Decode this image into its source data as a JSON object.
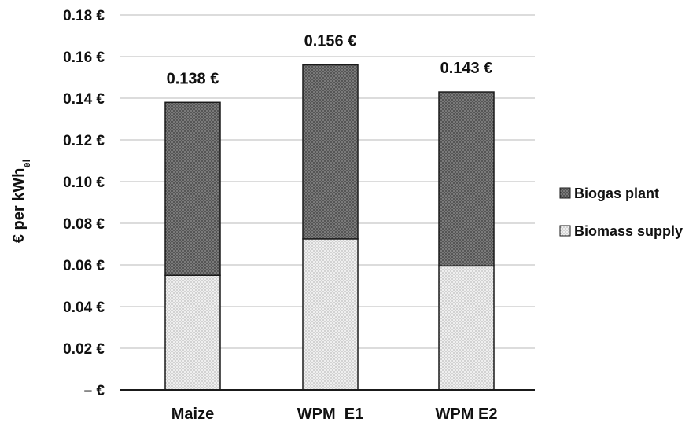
{
  "chart_data": {
    "type": "bar",
    "stacked": true,
    "categories": [
      "Maize",
      "WPM  E1",
      "WPM E2"
    ],
    "series": [
      {
        "name": "Biomass supply",
        "values": [
          0.055,
          0.0725,
          0.0595
        ],
        "pattern": "light-dotted"
      },
      {
        "name": "Biogas plant",
        "values": [
          0.083,
          0.0835,
          0.0835
        ],
        "pattern": "dark-dotted"
      }
    ],
    "totals": [
      "0.138 €",
      "0.156 €",
      "0.143 €"
    ],
    "ylabel_main": "€ per kWh",
    "ylabel_sub": "el",
    "yticks": [
      {
        "value": 0,
        "label": "–   €"
      },
      {
        "value": 0.02,
        "label": "0.02 €"
      },
      {
        "value": 0.04,
        "label": "0.04 €"
      },
      {
        "value": 0.06,
        "label": "0.06 €"
      },
      {
        "value": 0.08,
        "label": "0.08 €"
      },
      {
        "value": 0.1,
        "label": "0.10 €"
      },
      {
        "value": 0.12,
        "label": "0.12 €"
      },
      {
        "value": 0.14,
        "label": "0.14 €"
      },
      {
        "value": 0.16,
        "label": "0.16 €"
      },
      {
        "value": 0.18,
        "label": "0.18 €"
      }
    ],
    "ylim": [
      0,
      0.18
    ],
    "grid": true,
    "legend_position": "right",
    "legend_order": [
      "Biogas plant",
      "Biomass supply"
    ],
    "colors": {
      "dark_fill": "#7a7a7a",
      "dark_dot": "#3a3a3a",
      "light_fill": "#efefef",
      "light_dot": "#8a8a8a",
      "grid": "#c8c8c8",
      "axis": "#1a1a1a",
      "bar_edge": "#1a1a1a"
    }
  }
}
